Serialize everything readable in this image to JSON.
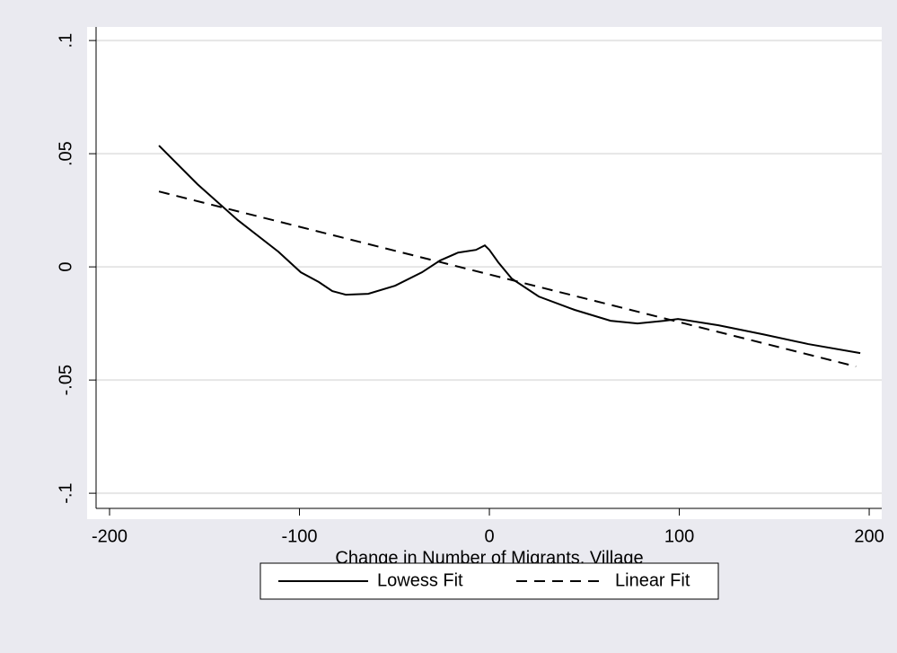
{
  "chart_data": {
    "type": "line",
    "x_label": "Change in Number of Migrants, Village",
    "xlim": [
      -207.1,
      206.6
    ],
    "ylim": [
      -0.1067,
      0.106
    ],
    "xticks": [
      -200,
      -100,
      0,
      100,
      200
    ],
    "yticks": [
      {
        "value": -0.1,
        "label": "-.1"
      },
      {
        "value": -0.05,
        "label": "-.05"
      },
      0,
      {
        "value": 0.05,
        "label": ".05"
      },
      {
        "value": 0.1,
        "label": ".1"
      }
    ],
    "grid": true,
    "legend": "bottom",
    "series": [
      {
        "name": "Lowess Fit",
        "color": "#000000",
        "dash": "solid",
        "x": [
          -174,
          -153.7,
          -132.4,
          -111.1,
          -99.3,
          -89.8,
          -82.7,
          -75.6,
          -63.8,
          -49.6,
          -35.5,
          -26.0,
          -16.5,
          -7.1,
          -2.4,
          0,
          4.7,
          11.8,
          26.0,
          44.9,
          63.8,
          78.0,
          92.2,
          99.3,
          120.6,
          144.2,
          167.9,
          195.3
        ],
        "values": [
          0.0536,
          0.0365,
          0.0206,
          0.0067,
          -0.0024,
          -0.0067,
          -0.0107,
          -0.0123,
          -0.0119,
          -0.0083,
          -0.0024,
          0.0028,
          0.0063,
          0.0075,
          0.0095,
          0.0075,
          0.002,
          -0.0052,
          -0.0131,
          -0.019,
          -0.0238,
          -0.025,
          -0.0238,
          -0.023,
          -0.0258,
          -0.0298,
          -0.0341,
          -0.0381
        ]
      },
      {
        "name": "Linear Fit",
        "color": "#000000",
        "dash": "dashed",
        "x": [
          -174,
          193
        ],
        "values": [
          0.0333,
          -0.044
        ]
      }
    ]
  }
}
